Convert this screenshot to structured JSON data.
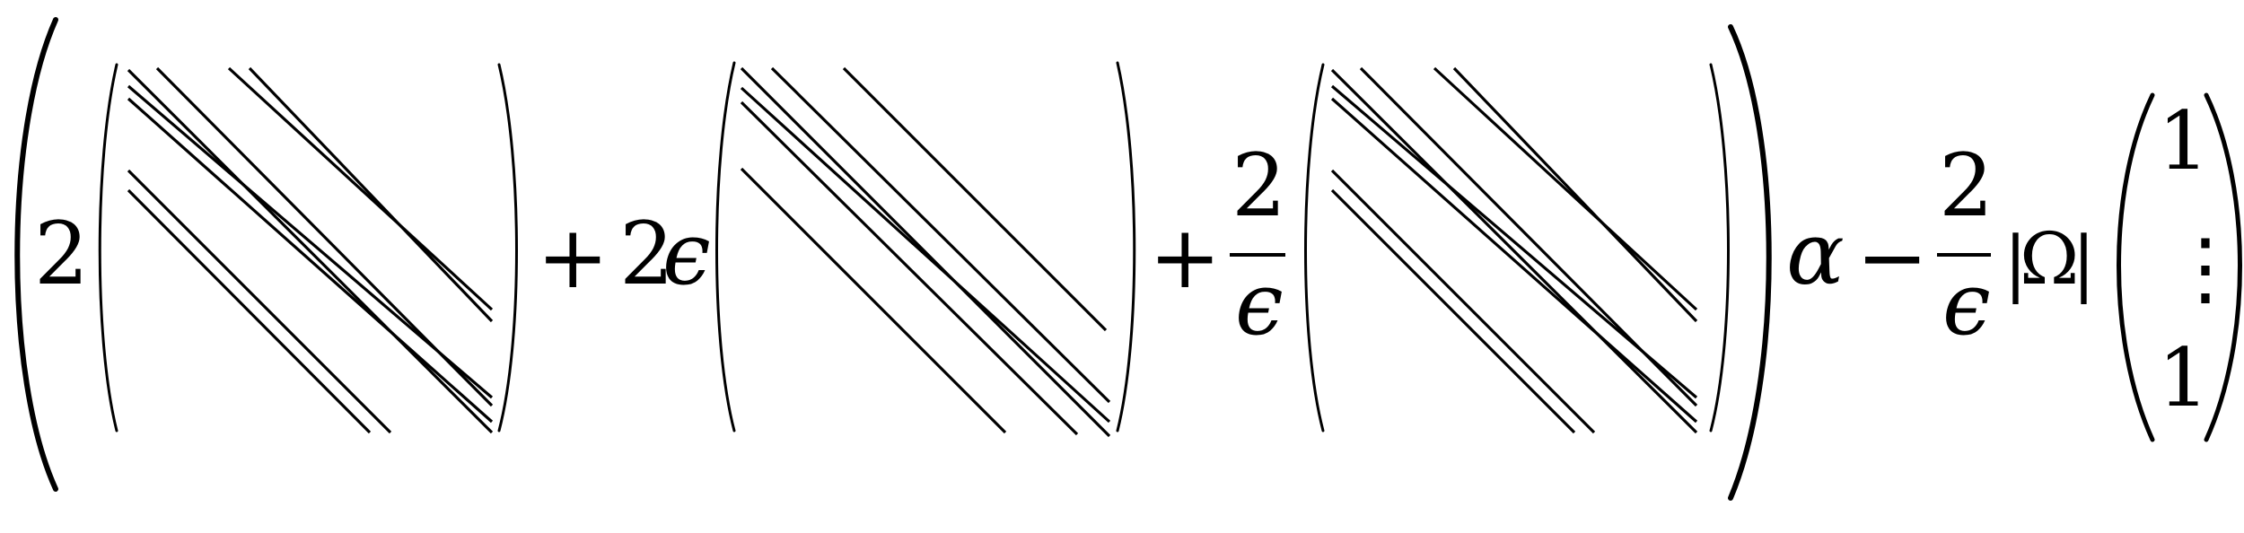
{
  "expression": {
    "coef_first": "2",
    "plus_1": "+",
    "coef_second": "2",
    "epsilon_second": "ϵ",
    "plus_2": "+",
    "frac_numerator": "2",
    "frac_denominator": "ϵ",
    "alpha": "α",
    "minus": "−",
    "frac2_numerator": "2",
    "frac2_denominator": "ϵ",
    "abs_bar_left": "|",
    "omega": "Ω",
    "abs_bar_right": "|",
    "vector_top": "1",
    "vector_dots": "⋮",
    "vector_bottom": "1"
  }
}
